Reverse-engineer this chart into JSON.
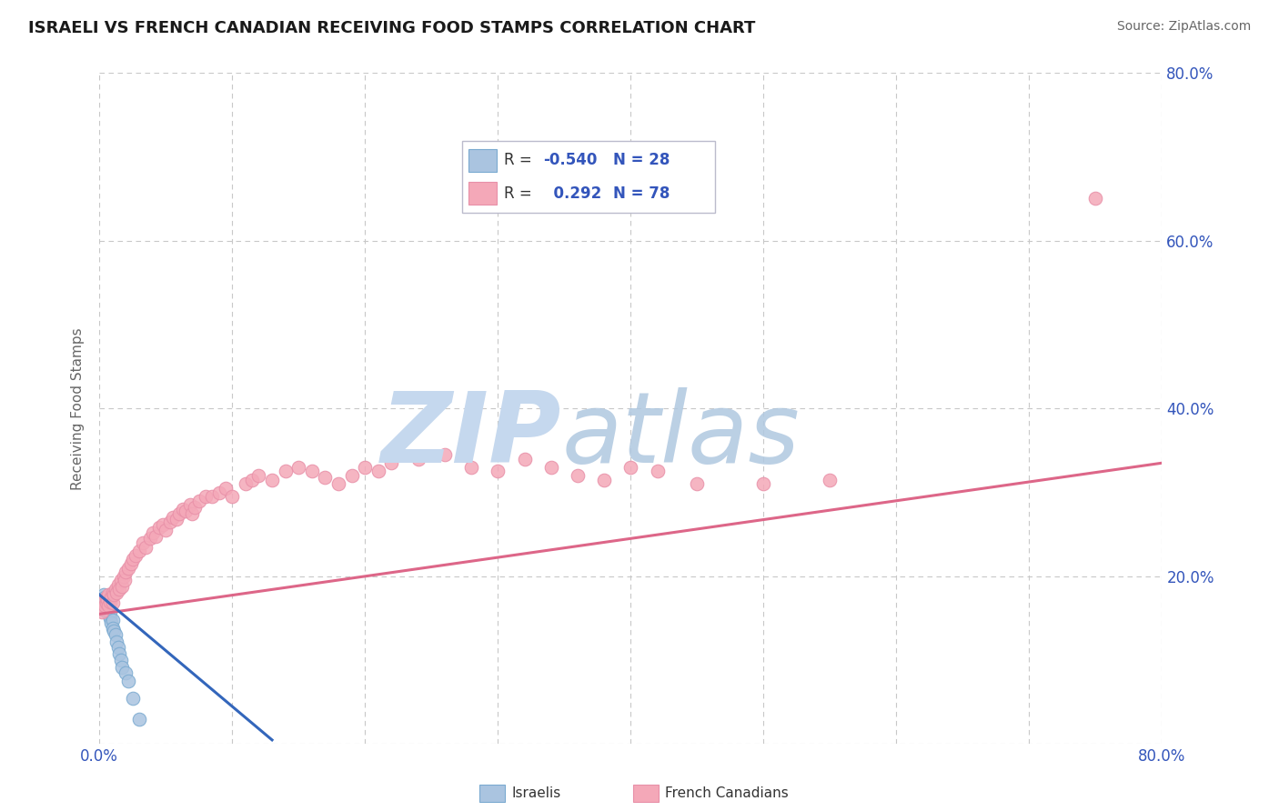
{
  "title": "ISRAELI VS FRENCH CANADIAN RECEIVING FOOD STAMPS CORRELATION CHART",
  "source_text": "Source: ZipAtlas.com",
  "ylabel": "Receiving Food Stamps",
  "xlim": [
    0.0,
    0.8
  ],
  "ylim": [
    0.0,
    0.8
  ],
  "ytick_positions": [
    0.0,
    0.2,
    0.4,
    0.6,
    0.8
  ],
  "ytick_labels": [
    "",
    "20.0%",
    "40.0%",
    "60.0%",
    "80.0%"
  ],
  "grid_color": "#c8c8c8",
  "background_color": "#ffffff",
  "israeli_color": "#aac4e0",
  "french_color": "#f4a8b8",
  "israeli_edge_color": "#7aaad0",
  "french_edge_color": "#e890a8",
  "israeli_line_color": "#3366bb",
  "french_line_color": "#dd6688",
  "watermark_zip_color": "#c5d8ee",
  "watermark_atlas_color": "#b0c8e0",
  "R_israeli": -0.54,
  "N_israeli": 28,
  "R_french": 0.292,
  "N_french": 78,
  "legend_text_color": "#3355bb",
  "legend_R_label_color": "#333333",
  "legend_label_israeli": "Israelis",
  "legend_label_french": "French Canadians",
  "israeli_x": [
    0.001,
    0.002,
    0.003,
    0.003,
    0.004,
    0.004,
    0.005,
    0.005,
    0.006,
    0.006,
    0.007,
    0.007,
    0.008,
    0.008,
    0.009,
    0.01,
    0.01,
    0.011,
    0.012,
    0.013,
    0.014,
    0.015,
    0.016,
    0.017,
    0.02,
    0.022,
    0.025,
    0.03
  ],
  "israeli_y": [
    0.165,
    0.172,
    0.178,
    0.16,
    0.168,
    0.175,
    0.162,
    0.17,
    0.158,
    0.165,
    0.155,
    0.162,
    0.15,
    0.158,
    0.145,
    0.148,
    0.138,
    0.135,
    0.13,
    0.122,
    0.115,
    0.108,
    0.1,
    0.092,
    0.085,
    0.075,
    0.055,
    0.03
  ],
  "french_x": [
    0.001,
    0.002,
    0.003,
    0.004,
    0.005,
    0.005,
    0.006,
    0.007,
    0.007,
    0.008,
    0.009,
    0.01,
    0.01,
    0.011,
    0.012,
    0.013,
    0.014,
    0.015,
    0.016,
    0.017,
    0.018,
    0.019,
    0.02,
    0.022,
    0.024,
    0.025,
    0.027,
    0.03,
    0.033,
    0.035,
    0.038,
    0.04,
    0.042,
    0.045,
    0.048,
    0.05,
    0.053,
    0.055,
    0.058,
    0.06,
    0.063,
    0.065,
    0.068,
    0.07,
    0.072,
    0.075,
    0.08,
    0.085,
    0.09,
    0.095,
    0.1,
    0.11,
    0.115,
    0.12,
    0.13,
    0.14,
    0.15,
    0.16,
    0.17,
    0.18,
    0.19,
    0.2,
    0.21,
    0.22,
    0.24,
    0.26,
    0.28,
    0.3,
    0.32,
    0.34,
    0.36,
    0.38,
    0.4,
    0.42,
    0.45,
    0.5,
    0.55,
    0.75
  ],
  "french_y": [
    0.162,
    0.158,
    0.17,
    0.165,
    0.168,
    0.175,
    0.172,
    0.165,
    0.178,
    0.17,
    0.175,
    0.168,
    0.18,
    0.178,
    0.185,
    0.18,
    0.19,
    0.185,
    0.195,
    0.188,
    0.2,
    0.195,
    0.205,
    0.21,
    0.215,
    0.22,
    0.225,
    0.23,
    0.24,
    0.235,
    0.245,
    0.252,
    0.248,
    0.258,
    0.262,
    0.255,
    0.265,
    0.27,
    0.268,
    0.275,
    0.28,
    0.278,
    0.285,
    0.275,
    0.282,
    0.29,
    0.295,
    0.295,
    0.3,
    0.305,
    0.295,
    0.31,
    0.315,
    0.32,
    0.315,
    0.325,
    0.33,
    0.325,
    0.318,
    0.31,
    0.32,
    0.33,
    0.325,
    0.335,
    0.34,
    0.345,
    0.33,
    0.325,
    0.34,
    0.33,
    0.32,
    0.315,
    0.33,
    0.325,
    0.31,
    0.31,
    0.315,
    0.65
  ],
  "french_trend_x0": 0.0,
  "french_trend_x1": 0.8,
  "french_trend_y0": 0.155,
  "french_trend_y1": 0.335,
  "israeli_trend_x0": 0.0,
  "israeli_trend_x1": 0.13,
  "israeli_trend_y0": 0.178,
  "israeli_trend_y1": 0.005
}
